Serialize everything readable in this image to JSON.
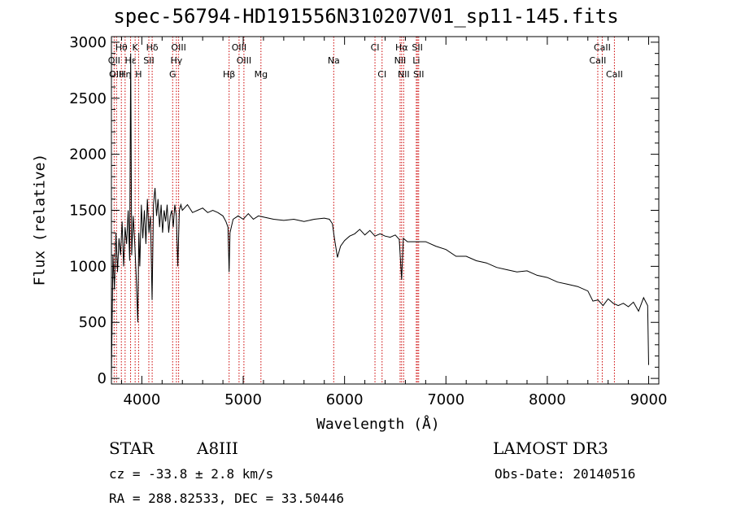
{
  "chart_data": {
    "type": "line",
    "title": "spec-56794-HD191556N310207V01_sp11-145.fits",
    "xlabel": "Wavelength (Å)",
    "ylabel": "Flux (relative)",
    "xlim": [
      3700,
      9100
    ],
    "ylim": [
      -50,
      3050
    ],
    "x_ticks": [
      4000,
      5000,
      6000,
      7000,
      8000,
      9000
    ],
    "y_ticks": [
      0,
      500,
      1000,
      1500,
      2000,
      2500,
      3000
    ],
    "x_tick_labels": [
      "4000",
      "5000",
      "6000",
      "7000",
      "8000",
      "9000"
    ],
    "y_tick_labels": [
      "0",
      "500",
      "1000",
      "1500",
      "2000",
      "2500",
      "3000"
    ],
    "series": [
      {
        "name": "flux",
        "x": [
          3700,
          3715,
          3730,
          3745,
          3760,
          3775,
          3790,
          3805,
          3820,
          3835,
          3850,
          3865,
          3880,
          3890,
          3900,
          3915,
          3930,
          3945,
          3960,
          3970,
          3980,
          3995,
          4010,
          4025,
          4040,
          4055,
          4070,
          4085,
          4101,
          4115,
          4130,
          4145,
          4160,
          4175,
          4190,
          4205,
          4220,
          4235,
          4250,
          4265,
          4280,
          4295,
          4310,
          4325,
          4340,
          4355,
          4370,
          4385,
          4400,
          4450,
          4500,
          4550,
          4600,
          4650,
          4700,
          4750,
          4800,
          4830,
          4850,
          4861,
          4870,
          4900,
          4950,
          5000,
          5050,
          5100,
          5150,
          5200,
          5300,
          5400,
          5500,
          5600,
          5700,
          5800,
          5850,
          5880,
          5900,
          5930,
          5960,
          6000,
          6050,
          6100,
          6150,
          6200,
          6250,
          6300,
          6350,
          6400,
          6450,
          6500,
          6540,
          6563,
          6580,
          6620,
          6700,
          6800,
          6900,
          7000,
          7100,
          7200,
          7300,
          7400,
          7500,
          7600,
          7700,
          7800,
          7900,
          8000,
          8100,
          8200,
          8300,
          8400,
          8450,
          8500,
          8550,
          8600,
          8650,
          8700,
          8750,
          8800,
          8850,
          8900,
          8950,
          8990,
          9000
        ],
        "values": [
          20,
          1100,
          800,
          1300,
          950,
          1250,
          1100,
          1400,
          1000,
          1350,
          1200,
          1500,
          1050,
          2900,
          1100,
          1450,
          1200,
          900,
          500,
          1300,
          1000,
          1550,
          1250,
          1500,
          1200,
          1600,
          1300,
          1450,
          700,
          1550,
          1700,
          1450,
          1600,
          1350,
          1550,
          1300,
          1500,
          1400,
          1550,
          1300,
          1450,
          1500,
          1350,
          1550,
          1450,
          1000,
          1500,
          1550,
          1500,
          1550,
          1480,
          1500,
          1520,
          1480,
          1500,
          1480,
          1450,
          1400,
          1350,
          950,
          1300,
          1420,
          1450,
          1420,
          1470,
          1420,
          1450,
          1440,
          1420,
          1410,
          1420,
          1400,
          1420,
          1430,
          1420,
          1380,
          1250,
          1080,
          1180,
          1230,
          1270,
          1290,
          1330,
          1280,
          1320,
          1270,
          1290,
          1270,
          1260,
          1280,
          1240,
          880,
          1250,
          1220,
          1220,
          1220,
          1180,
          1150,
          1090,
          1090,
          1050,
          1030,
          990,
          970,
          950,
          960,
          920,
          900,
          860,
          840,
          820,
          780,
          690,
          700,
          650,
          710,
          670,
          650,
          670,
          640,
          680,
          600,
          720,
          650,
          120
        ]
      }
    ],
    "line_labels": [
      {
        "label": "Hθ",
        "wavelength": 3798,
        "row": 1
      },
      {
        "label": "K",
        "wavelength": 3934,
        "row": 1
      },
      {
        "label": "Hδ",
        "wavelength": 4102,
        "row": 1
      },
      {
        "label": "OIII",
        "wavelength": 4363,
        "row": 1
      },
      {
        "label": "OIII",
        "wavelength": 4959,
        "row": 1
      },
      {
        "label": "CI",
        "wavelength": 6300,
        "row": 1
      },
      {
        "label": "Hα",
        "wavelength": 6563,
        "row": 1
      },
      {
        "label": "SII",
        "wavelength": 6718,
        "row": 1
      },
      {
        "label": "CaII",
        "wavelength": 8542,
        "row": 1
      },
      {
        "label": "OII",
        "wavelength": 3727,
        "row": 2
      },
      {
        "label": "Hε",
        "wavelength": 3889,
        "row": 2
      },
      {
        "label": "SII",
        "wavelength": 4069,
        "row": 2
      },
      {
        "label": "Hγ",
        "wavelength": 4341,
        "row": 2
      },
      {
        "label": "OIII",
        "wavelength": 5007,
        "row": 2
      },
      {
        "label": "Na",
        "wavelength": 5893,
        "row": 2
      },
      {
        "label": "NII",
        "wavelength": 6548,
        "row": 2
      },
      {
        "label": "Li",
        "wavelength": 6708,
        "row": 2
      },
      {
        "label": "CaII",
        "wavelength": 8498,
        "row": 2
      },
      {
        "label": "OIII",
        "wavelength": 3750,
        "row": 3
      },
      {
        "label": "Hη",
        "wavelength": 3835,
        "row": 3
      },
      {
        "label": "H",
        "wavelength": 3968,
        "row": 3
      },
      {
        "label": "G",
        "wavelength": 4304,
        "row": 3
      },
      {
        "label": "Hβ",
        "wavelength": 4861,
        "row": 3
      },
      {
        "label": "Mg",
        "wavelength": 5175,
        "row": 3
      },
      {
        "label": "CI",
        "wavelength": 6370,
        "row": 3
      },
      {
        "label": "NII",
        "wavelength": 6583,
        "row": 3
      },
      {
        "label": "SII",
        "wavelength": 6731,
        "row": 3
      },
      {
        "label": "CaII",
        "wavelength": 8662,
        "row": 3
      }
    ],
    "line_wavelengths": [
      3727,
      3750,
      3798,
      3835,
      3889,
      3934,
      3968,
      4069,
      4102,
      4304,
      4341,
      4363,
      4861,
      4959,
      5007,
      5175,
      5893,
      6300,
      6370,
      6548,
      6563,
      6583,
      6708,
      6718,
      6731,
      8498,
      8542,
      8662
    ],
    "colors": {
      "spectrum": "#000000",
      "line_marker": "#cc0000",
      "axis": "#000000"
    }
  },
  "info": {
    "object_type": "STAR",
    "spectral_class": "A8III",
    "survey": "LAMOST DR3",
    "cz": "cz = -33.8 ± 2.8 km/s",
    "obs_date": "Obs-Date: 20140516",
    "coords": "RA = 288.82533, DEC =  33.50446"
  }
}
